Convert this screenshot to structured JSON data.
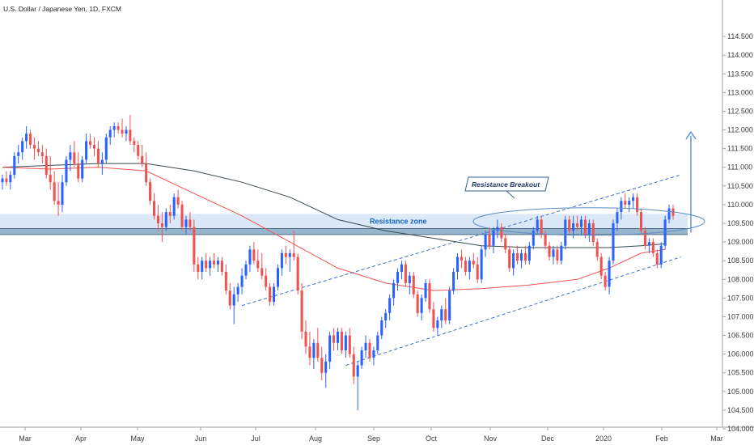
{
  "chart_data": {
    "type": "candlestick",
    "title": "U.S. Dollar / Japanese Yen, 1D, FXCM",
    "ylim": [
      104.0,
      115.0
    ],
    "yticks": [
      "104.000",
      "104.500",
      "105.000",
      "105.500",
      "106.000",
      "106.500",
      "107.000",
      "107.500",
      "108.000",
      "108.500",
      "109.000",
      "109.500",
      "110.000",
      "110.500",
      "111.000",
      "111.500",
      "112.000",
      "112.500",
      "113.000",
      "113.500",
      "114.000",
      "114.500"
    ],
    "xticks": [
      "Mar",
      "Apr",
      "May",
      "Jun",
      "Jul",
      "Aug",
      "Sep",
      "Oct",
      "Nov",
      "Dec",
      "2020",
      "Feb",
      "Mar"
    ],
    "grid": false,
    "annotations": {
      "resistance_zone_label": "Resistance zone",
      "resistance_zone_range": [
        109.2,
        109.75
      ],
      "callout_label": "Resistance Breakout"
    },
    "colors": {
      "up": "#2962ff",
      "down": "#ef5350",
      "ma_fast": "#ef5350",
      "ma_slow": "#37474f",
      "zone": "#dbe8f7",
      "channel": "#3d6fc7"
    },
    "candles": [
      [
        110.6,
        110.8,
        110.4,
        110.7
      ],
      [
        110.7,
        110.9,
        110.5,
        110.6
      ],
      [
        110.6,
        110.9,
        110.4,
        110.8
      ],
      [
        110.8,
        111.4,
        110.7,
        111.3
      ],
      [
        111.3,
        111.6,
        111.1,
        111.4
      ],
      [
        111.4,
        111.8,
        111.2,
        111.7
      ],
      [
        111.7,
        112.1,
        111.5,
        111.9
      ],
      [
        111.9,
        112.0,
        111.5,
        111.6
      ],
      [
        111.6,
        111.8,
        111.2,
        111.5
      ],
      [
        111.5,
        111.7,
        111.3,
        111.4
      ],
      [
        111.4,
        111.6,
        111.1,
        111.3
      ],
      [
        111.3,
        111.5,
        110.7,
        110.8
      ],
      [
        110.8,
        111.3,
        110.4,
        110.6
      ],
      [
        110.6,
        110.9,
        110.0,
        110.1
      ],
      [
        110.1,
        110.6,
        109.7,
        110.0
      ],
      [
        110.0,
        110.8,
        109.8,
        110.6
      ],
      [
        110.6,
        111.3,
        110.5,
        111.2
      ],
      [
        111.2,
        111.6,
        110.9,
        111.4
      ],
      [
        111.4,
        111.7,
        111.0,
        111.1
      ],
      [
        111.1,
        111.4,
        110.6,
        110.7
      ],
      [
        110.7,
        111.3,
        110.6,
        111.2
      ],
      [
        111.2,
        111.9,
        111.1,
        111.7
      ],
      [
        111.7,
        111.9,
        111.5,
        111.6
      ],
      [
        111.6,
        111.8,
        111.3,
        111.5
      ],
      [
        111.5,
        111.7,
        111.0,
        111.1
      ],
      [
        111.1,
        111.4,
        110.8,
        111.2
      ],
      [
        111.2,
        111.9,
        111.1,
        111.8
      ],
      [
        111.8,
        112.1,
        111.6,
        112.0
      ],
      [
        112.0,
        112.2,
        111.8,
        112.1
      ],
      [
        112.1,
        112.2,
        111.9,
        112.0
      ],
      [
        112.0,
        112.3,
        111.8,
        111.9
      ],
      [
        111.9,
        112.1,
        111.7,
        112.0
      ],
      [
        112.0,
        112.4,
        111.6,
        111.7
      ],
      [
        111.7,
        111.8,
        111.4,
        111.6
      ],
      [
        111.6,
        111.7,
        111.2,
        111.3
      ],
      [
        111.3,
        111.6,
        111.0,
        111.1
      ],
      [
        111.1,
        111.4,
        110.5,
        110.6
      ],
      [
        110.6,
        110.7,
        110.0,
        110.1
      ],
      [
        110.1,
        110.3,
        109.6,
        109.7
      ],
      [
        109.7,
        110.0,
        109.3,
        109.5
      ],
      [
        109.5,
        109.8,
        109.0,
        109.4
      ],
      [
        109.4,
        109.9,
        109.3,
        109.8
      ],
      [
        109.8,
        110.0,
        109.5,
        109.7
      ],
      [
        109.7,
        110.3,
        109.6,
        110.2
      ],
      [
        110.2,
        110.4,
        109.9,
        110.0
      ],
      [
        110.0,
        110.1,
        109.3,
        109.4
      ],
      [
        109.4,
        109.7,
        109.2,
        109.6
      ],
      [
        109.6,
        109.8,
        109.3,
        109.4
      ],
      [
        109.4,
        109.6,
        108.2,
        108.4
      ],
      [
        108.4,
        108.6,
        108.0,
        108.2
      ],
      [
        108.2,
        108.6,
        108.0,
        108.5
      ],
      [
        108.5,
        108.7,
        108.2,
        108.3
      ],
      [
        108.3,
        108.6,
        108.1,
        108.5
      ],
      [
        108.5,
        108.7,
        108.3,
        108.4
      ],
      [
        108.4,
        108.6,
        108.2,
        108.5
      ],
      [
        108.5,
        108.6,
        108.1,
        108.2
      ],
      [
        108.2,
        108.4,
        107.6,
        107.7
      ],
      [
        107.7,
        107.9,
        107.2,
        107.3
      ],
      [
        107.3,
        107.8,
        106.8,
        107.6
      ],
      [
        107.6,
        107.9,
        107.4,
        107.8
      ],
      [
        107.8,
        108.3,
        107.6,
        108.1
      ],
      [
        108.1,
        108.5,
        108.0,
        108.4
      ],
      [
        108.4,
        108.9,
        108.2,
        108.8
      ],
      [
        108.8,
        109.0,
        108.4,
        108.5
      ],
      [
        108.5,
        108.8,
        108.2,
        108.3
      ],
      [
        108.3,
        108.7,
        108.0,
        108.1
      ],
      [
        108.1,
        108.3,
        107.7,
        107.8
      ],
      [
        107.8,
        107.9,
        107.3,
        107.4
      ],
      [
        107.4,
        107.9,
        107.3,
        107.8
      ],
      [
        107.8,
        108.4,
        107.7,
        108.3
      ],
      [
        108.3,
        108.8,
        108.1,
        108.7
      ],
      [
        108.7,
        108.9,
        108.4,
        108.6
      ],
      [
        108.6,
        108.8,
        108.2,
        108.7
      ],
      [
        108.7,
        109.3,
        108.5,
        108.6
      ],
      [
        108.6,
        108.7,
        107.6,
        107.7
      ],
      [
        107.7,
        107.9,
        106.4,
        106.6
      ],
      [
        106.6,
        106.9,
        106.0,
        106.2
      ],
      [
        106.2,
        106.6,
        105.7,
        105.9
      ],
      [
        105.9,
        106.4,
        105.6,
        106.3
      ],
      [
        106.3,
        106.7,
        105.8,
        105.9
      ],
      [
        105.9,
        106.2,
        105.3,
        105.5
      ],
      [
        105.5,
        106.0,
        105.1,
        105.8
      ],
      [
        105.8,
        106.6,
        105.6,
        106.5
      ],
      [
        106.5,
        106.7,
        106.1,
        106.3
      ],
      [
        106.3,
        106.7,
        106.1,
        106.6
      ],
      [
        106.6,
        106.7,
        106.0,
        106.1
      ],
      [
        106.1,
        106.6,
        105.9,
        106.5
      ],
      [
        106.5,
        106.7,
        105.9,
        106.0
      ],
      [
        106.0,
        106.2,
        105.2,
        105.4
      ],
      [
        105.4,
        105.8,
        104.5,
        105.7
      ],
      [
        105.7,
        106.2,
        105.6,
        106.1
      ],
      [
        106.1,
        106.5,
        105.9,
        106.3
      ],
      [
        106.3,
        106.4,
        105.8,
        105.9
      ],
      [
        105.9,
        106.2,
        105.7,
        106.1
      ],
      [
        106.1,
        106.6,
        106.0,
        106.5
      ],
      [
        106.5,
        107.0,
        106.4,
        106.9
      ],
      [
        106.9,
        107.2,
        106.7,
        107.1
      ],
      [
        107.1,
        107.6,
        106.9,
        107.5
      ],
      [
        107.5,
        108.0,
        107.3,
        107.9
      ],
      [
        107.9,
        108.3,
        107.7,
        108.2
      ],
      [
        108.2,
        108.5,
        108.0,
        108.4
      ],
      [
        108.4,
        108.5,
        107.8,
        107.9
      ],
      [
        107.9,
        108.2,
        107.6,
        108.1
      ],
      [
        108.1,
        108.2,
        107.5,
        107.6
      ],
      [
        107.6,
        107.7,
        107.0,
        107.1
      ],
      [
        107.1,
        107.6,
        106.9,
        107.5
      ],
      [
        107.5,
        108.0,
        107.4,
        107.9
      ],
      [
        107.9,
        108.0,
        107.1,
        107.2
      ],
      [
        107.2,
        107.4,
        106.6,
        106.7
      ],
      [
        106.7,
        107.0,
        106.5,
        106.9
      ],
      [
        106.9,
        107.3,
        106.7,
        107.2
      ],
      [
        107.2,
        107.5,
        106.8,
        106.9
      ],
      [
        106.9,
        107.8,
        106.8,
        107.7
      ],
      [
        107.7,
        108.3,
        107.6,
        108.2
      ],
      [
        108.2,
        108.7,
        108.0,
        108.6
      ],
      [
        108.6,
        108.8,
        108.3,
        108.5
      ],
      [
        108.5,
        108.6,
        108.1,
        108.2
      ],
      [
        108.2,
        108.6,
        108.0,
        108.5
      ],
      [
        108.5,
        108.7,
        108.3,
        108.4
      ],
      [
        108.4,
        108.6,
        107.9,
        108.0
      ],
      [
        108.0,
        108.9,
        107.9,
        108.8
      ],
      [
        108.8,
        109.3,
        108.6,
        109.2
      ],
      [
        109.2,
        109.4,
        108.8,
        108.9
      ],
      [
        108.9,
        109.4,
        108.7,
        109.3
      ],
      [
        109.3,
        109.6,
        109.1,
        109.4
      ],
      [
        109.4,
        109.5,
        109.0,
        109.1
      ],
      [
        109.1,
        109.2,
        108.7,
        108.8
      ],
      [
        108.8,
        108.9,
        108.2,
        108.3
      ],
      [
        108.3,
        108.8,
        108.1,
        108.7
      ],
      [
        108.7,
        108.9,
        108.4,
        108.5
      ],
      [
        108.5,
        108.8,
        108.3,
        108.7
      ],
      [
        108.7,
        108.9,
        108.4,
        108.5
      ],
      [
        108.5,
        109.0,
        108.4,
        108.9
      ],
      [
        108.9,
        109.4,
        108.8,
        109.3
      ],
      [
        109.3,
        109.7,
        109.2,
        109.6
      ],
      [
        109.6,
        109.7,
        109.1,
        109.2
      ],
      [
        109.2,
        109.3,
        108.8,
        108.9
      ],
      [
        108.9,
        109.0,
        108.5,
        108.6
      ],
      [
        108.6,
        108.9,
        108.4,
        108.8
      ],
      [
        108.8,
        108.9,
        108.4,
        108.5
      ],
      [
        108.5,
        109.0,
        108.4,
        108.9
      ],
      [
        108.9,
        109.7,
        108.8,
        109.6
      ],
      [
        109.6,
        109.7,
        109.2,
        109.3
      ],
      [
        109.3,
        109.7,
        109.1,
        109.5
      ],
      [
        109.5,
        109.7,
        109.3,
        109.4
      ],
      [
        109.4,
        109.7,
        109.2,
        109.6
      ],
      [
        109.6,
        109.7,
        109.1,
        109.2
      ],
      [
        109.2,
        109.6,
        109.0,
        109.5
      ],
      [
        109.5,
        109.6,
        108.9,
        109.0
      ],
      [
        109.0,
        109.1,
        108.5,
        108.6
      ],
      [
        108.6,
        108.7,
        108.0,
        108.1
      ],
      [
        108.1,
        108.2,
        107.7,
        107.8
      ],
      [
        107.8,
        108.6,
        107.6,
        108.5
      ],
      [
        108.5,
        109.6,
        108.4,
        109.5
      ],
      [
        109.5,
        109.9,
        109.3,
        109.8
      ],
      [
        109.8,
        110.2,
        109.6,
        110.1
      ],
      [
        110.1,
        110.3,
        109.9,
        110.0
      ],
      [
        110.0,
        110.2,
        109.8,
        110.1
      ],
      [
        110.1,
        110.3,
        109.9,
        110.2
      ],
      [
        110.2,
        110.3,
        109.7,
        109.8
      ],
      [
        109.8,
        109.9,
        109.2,
        109.3
      ],
      [
        109.3,
        109.4,
        108.8,
        108.9
      ],
      [
        108.9,
        109.1,
        108.7,
        109.0
      ],
      [
        109.0,
        109.1,
        108.6,
        108.7
      ],
      [
        108.7,
        108.8,
        108.3,
        108.4
      ],
      [
        108.4,
        109.0,
        108.3,
        108.9
      ],
      [
        108.9,
        109.7,
        108.8,
        109.6
      ],
      [
        109.6,
        110.0,
        109.5,
        109.9
      ],
      [
        109.9,
        110.0,
        109.6,
        109.7
      ]
    ],
    "ma_fast": [
      {
        "x": 0,
        "y": 111.0
      },
      {
        "x": 12,
        "y": 110.95
      },
      {
        "x": 24,
        "y": 111.0
      },
      {
        "x": 36,
        "y": 110.9
      },
      {
        "x": 48,
        "y": 110.3
      },
      {
        "x": 60,
        "y": 109.7
      },
      {
        "x": 72,
        "y": 109.0
      },
      {
        "x": 84,
        "y": 108.3
      },
      {
        "x": 96,
        "y": 107.9
      },
      {
        "x": 108,
        "y": 107.7
      },
      {
        "x": 120,
        "y": 107.75
      },
      {
        "x": 132,
        "y": 107.85
      },
      {
        "x": 144,
        "y": 108.0
      },
      {
        "x": 152,
        "y": 108.3
      },
      {
        "x": 160,
        "y": 108.7
      },
      {
        "x": 166,
        "y": 108.8
      }
    ],
    "ma_slow": [
      {
        "x": 0,
        "y": 111.0
      },
      {
        "x": 12,
        "y": 111.05
      },
      {
        "x": 24,
        "y": 111.1
      },
      {
        "x": 36,
        "y": 111.1
      },
      {
        "x": 48,
        "y": 110.9
      },
      {
        "x": 60,
        "y": 110.6
      },
      {
        "x": 72,
        "y": 110.2
      },
      {
        "x": 84,
        "y": 109.6
      },
      {
        "x": 96,
        "y": 109.3
      },
      {
        "x": 108,
        "y": 109.1
      },
      {
        "x": 120,
        "y": 108.9
      },
      {
        "x": 132,
        "y": 108.85
      },
      {
        "x": 144,
        "y": 108.85
      },
      {
        "x": 152,
        "y": 108.85
      },
      {
        "x": 160,
        "y": 108.9
      },
      {
        "x": 166,
        "y": 108.95
      }
    ],
    "channel_upper": [
      {
        "x": 60,
        "y": 107.3
      },
      {
        "x": 170,
        "y": 110.8
      }
    ],
    "channel_lower": [
      {
        "x": 86,
        "y": 105.7
      },
      {
        "x": 170,
        "y": 108.6
      }
    ]
  }
}
